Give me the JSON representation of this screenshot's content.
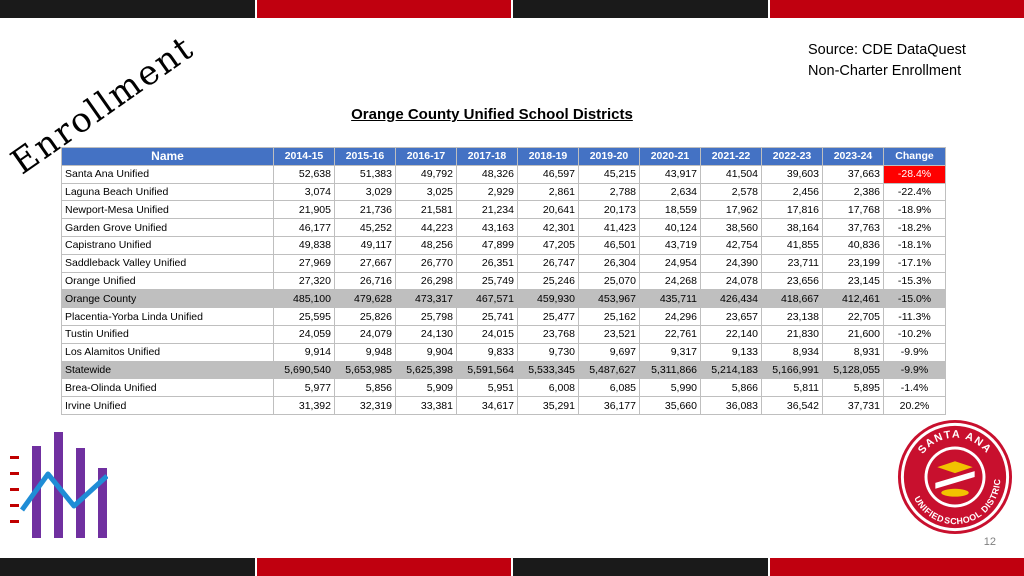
{
  "slide": {
    "title_word": "Enrollment",
    "source_line1": "Source: CDE DataQuest",
    "source_line2": "Non-Charter Enrollment",
    "table_title": "Orange County Unified School Districts",
    "page_number": "12"
  },
  "colors": {
    "header_blue": "#4472c4",
    "highlight_red": "#ff0000",
    "band_red": "#c0000f",
    "band_dark": "#1a1a1a",
    "chart_purple": "#7030a0",
    "chart_blue": "#1f8dd6",
    "dash_red": "#c00000"
  },
  "logo": {
    "text_top": "SANTA ANA",
    "text_left": "UNIFIED",
    "text_bottom": "SCHOOL DISTRICT"
  },
  "table": {
    "headers": [
      "Name",
      "2014-15",
      "2015-16",
      "2016-17",
      "2017-18",
      "2018-19",
      "2019-20",
      "2020-21",
      "2021-22",
      "2022-23",
      "2023-24",
      "Change"
    ],
    "rows": [
      {
        "cells": [
          "Santa Ana Unified",
          "52,638",
          "51,383",
          "49,792",
          "48,326",
          "46,597",
          "45,215",
          "43,917",
          "41,504",
          "39,603",
          "37,663",
          "-28.4%"
        ],
        "highlight": true
      },
      {
        "cells": [
          "Laguna Beach Unified",
          "3,074",
          "3,029",
          "3,025",
          "2,929",
          "2,861",
          "2,788",
          "2,634",
          "2,578",
          "2,456",
          "2,386",
          "-22.4%"
        ]
      },
      {
        "cells": [
          "Newport-Mesa Unified",
          "21,905",
          "21,736",
          "21,581",
          "21,234",
          "20,641",
          "20,173",
          "18,559",
          "17,962",
          "17,816",
          "17,768",
          "-18.9%"
        ]
      },
      {
        "cells": [
          "Garden Grove Unified",
          "46,177",
          "45,252",
          "44,223",
          "43,163",
          "42,301",
          "41,423",
          "40,124",
          "38,560",
          "38,164",
          "37,763",
          "-18.2%"
        ]
      },
      {
        "cells": [
          "Capistrano Unified",
          "49,838",
          "49,117",
          "48,256",
          "47,899",
          "47,205",
          "46,501",
          "43,719",
          "42,754",
          "41,855",
          "40,836",
          "-18.1%"
        ]
      },
      {
        "cells": [
          "Saddleback Valley Unified",
          "27,969",
          "27,667",
          "26,770",
          "26,351",
          "26,747",
          "26,304",
          "24,954",
          "24,390",
          "23,711",
          "23,199",
          "-17.1%"
        ]
      },
      {
        "cells": [
          "Orange Unified",
          "27,320",
          "26,716",
          "26,298",
          "25,749",
          "25,246",
          "25,070",
          "24,268",
          "24,078",
          "23,656",
          "23,145",
          "-15.3%"
        ]
      },
      {
        "cells": [
          "Orange County",
          "485,100",
          "479,628",
          "473,317",
          "467,571",
          "459,930",
          "453,967",
          "435,711",
          "426,434",
          "418,667",
          "412,461",
          "-15.0%"
        ],
        "grey": true
      },
      {
        "cells": [
          "Placentia-Yorba Linda Unified",
          "25,595",
          "25,826",
          "25,798",
          "25,741",
          "25,477",
          "25,162",
          "24,296",
          "23,657",
          "23,138",
          "22,705",
          "-11.3%"
        ]
      },
      {
        "cells": [
          "Tustin Unified",
          "24,059",
          "24,079",
          "24,130",
          "24,015",
          "23,768",
          "23,521",
          "22,761",
          "22,140",
          "21,830",
          "21,600",
          "-10.2%"
        ]
      },
      {
        "cells": [
          "Los Alamitos Unified",
          "9,914",
          "9,948",
          "9,904",
          "9,833",
          "9,730",
          "9,697",
          "9,317",
          "9,133",
          "8,934",
          "8,931",
          "-9.9%"
        ]
      },
      {
        "cells": [
          "Statewide",
          "5,690,540",
          "5,653,985",
          "5,625,398",
          "5,591,564",
          "5,533,345",
          "5,487,627",
          "5,311,866",
          "5,214,183",
          "5,166,991",
          "5,128,055",
          "-9.9%"
        ],
        "grey": true
      },
      {
        "cells": [
          "Brea-Olinda Unified",
          "5,977",
          "5,856",
          "5,909",
          "5,951",
          "6,008",
          "6,085",
          "5,990",
          "5,866",
          "5,811",
          "5,895",
          "-1.4%"
        ]
      },
      {
        "cells": [
          "Irvine Unified",
          "31,392",
          "32,319",
          "33,381",
          "34,617",
          "35,291",
          "36,177",
          "35,660",
          "36,083",
          "36,542",
          "37,731",
          "20.2%"
        ]
      }
    ]
  }
}
